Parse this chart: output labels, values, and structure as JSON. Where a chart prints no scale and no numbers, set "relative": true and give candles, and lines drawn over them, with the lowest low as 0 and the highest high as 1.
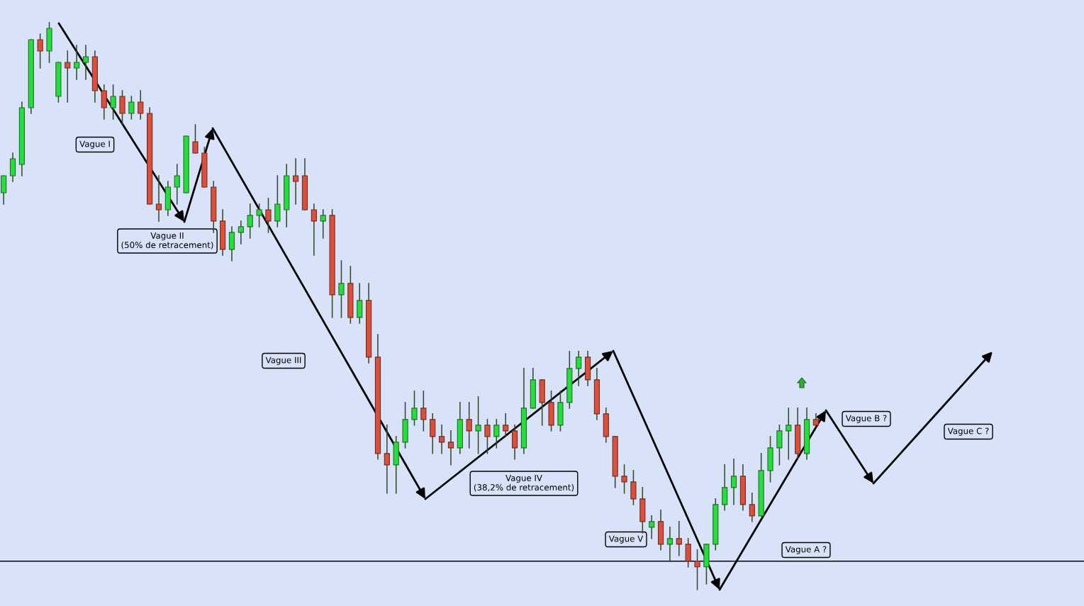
{
  "chart_data": {
    "type": "candlestick",
    "relative": true,
    "categories": [
      null,
      null,
      null,
      null,
      null,
      null,
      null,
      null,
      null,
      null,
      null,
      null,
      null,
      null,
      null,
      null,
      null,
      null,
      null,
      null,
      null,
      null,
      null,
      null,
      null,
      null,
      null,
      null,
      null,
      null,
      null,
      null,
      null,
      null,
      null,
      null,
      null,
      null,
      null,
      null,
      null,
      null,
      null,
      null,
      null,
      null,
      null,
      null,
      null,
      null,
      null,
      null,
      null,
      null,
      null,
      null,
      null,
      null,
      null,
      null,
      null,
      null,
      null,
      null,
      null,
      null,
      null,
      null,
      null,
      null,
      null,
      null,
      null,
      null,
      null,
      null,
      null,
      null,
      null,
      null,
      null,
      null,
      null,
      null,
      null,
      null,
      null,
      null,
      null,
      null
    ],
    "ohlc": [
      [
        0.7,
        0.73,
        0.68,
        0.73
      ],
      [
        0.73,
        0.77,
        0.72,
        0.76
      ],
      [
        0.75,
        0.86,
        0.73,
        0.85
      ],
      [
        0.85,
        0.97,
        0.84,
        0.97
      ],
      [
        0.97,
        0.98,
        0.92,
        0.95
      ],
      [
        0.95,
        1.0,
        0.93,
        0.99
      ],
      [
        0.87,
        0.93,
        0.86,
        0.93
      ],
      [
        0.93,
        0.95,
        0.86,
        0.92
      ],
      [
        0.92,
        0.96,
        0.9,
        0.93
      ],
      [
        0.93,
        0.96,
        0.9,
        0.94
      ],
      [
        0.94,
        0.95,
        0.86,
        0.88
      ],
      [
        0.88,
        0.89,
        0.83,
        0.85
      ],
      [
        0.85,
        0.89,
        0.83,
        0.87
      ],
      [
        0.87,
        0.88,
        0.82,
        0.84
      ],
      [
        0.84,
        0.87,
        0.83,
        0.86
      ],
      [
        0.86,
        0.88,
        0.83,
        0.84
      ],
      [
        0.84,
        0.85,
        0.68,
        0.68
      ],
      [
        0.68,
        0.73,
        0.65,
        0.67
      ],
      [
        0.67,
        0.72,
        0.66,
        0.71
      ],
      [
        0.71,
        0.75,
        0.68,
        0.73
      ],
      [
        0.7,
        0.8,
        0.7,
        0.8
      ],
      [
        0.79,
        0.82,
        0.77,
        0.77
      ],
      [
        0.77,
        0.78,
        0.71,
        0.71
      ],
      [
        0.71,
        0.72,
        0.63,
        0.65
      ],
      [
        0.65,
        0.67,
        0.59,
        0.6
      ],
      [
        0.6,
        0.64,
        0.58,
        0.63
      ],
      [
        0.63,
        0.65,
        0.61,
        0.64
      ],
      [
        0.64,
        0.68,
        0.62,
        0.66
      ],
      [
        0.66,
        0.68,
        0.64,
        0.67
      ],
      [
        0.67,
        0.69,
        0.63,
        0.65
      ],
      [
        0.65,
        0.73,
        0.64,
        0.68
      ],
      [
        0.67,
        0.75,
        0.64,
        0.73
      ],
      [
        0.73,
        0.76,
        0.68,
        0.72
      ],
      [
        0.73,
        0.76,
        0.67,
        0.67
      ],
      [
        0.67,
        0.68,
        0.59,
        0.65
      ],
      [
        0.65,
        0.67,
        0.62,
        0.66
      ],
      [
        0.66,
        0.67,
        0.48,
        0.52
      ],
      [
        0.52,
        0.58,
        0.48,
        0.54
      ],
      [
        0.54,
        0.57,
        0.47,
        0.48
      ],
      [
        0.48,
        0.54,
        0.47,
        0.51
      ],
      [
        0.51,
        0.54,
        0.4,
        0.41
      ],
      [
        0.41,
        0.45,
        0.23,
        0.24
      ],
      [
        0.24,
        0.29,
        0.17,
        0.22
      ],
      [
        0.22,
        0.27,
        0.17,
        0.26
      ],
      [
        0.26,
        0.33,
        0.25,
        0.3
      ],
      [
        0.3,
        0.35,
        0.29,
        0.32
      ],
      [
        0.32,
        0.35,
        0.28,
        0.3
      ],
      [
        0.3,
        0.31,
        0.24,
        0.27
      ],
      [
        0.27,
        0.29,
        0.24,
        0.26
      ],
      [
        0.26,
        0.28,
        0.22,
        0.25
      ],
      [
        0.25,
        0.33,
        0.24,
        0.3
      ],
      [
        0.3,
        0.33,
        0.25,
        0.28
      ],
      [
        0.28,
        0.34,
        0.24,
        0.29
      ],
      [
        0.29,
        0.3,
        0.24,
        0.27
      ],
      [
        0.27,
        0.3,
        0.25,
        0.29
      ],
      [
        0.29,
        0.31,
        0.27,
        0.28
      ],
      [
        0.28,
        0.29,
        0.23,
        0.25
      ],
      [
        0.25,
        0.39,
        0.24,
        0.32
      ],
      [
        0.32,
        0.39,
        0.32,
        0.37
      ],
      [
        0.37,
        0.37,
        0.29,
        0.33
      ],
      [
        0.33,
        0.35,
        0.28,
        0.29
      ],
      [
        0.29,
        0.35,
        0.28,
        0.33
      ],
      [
        0.33,
        0.42,
        0.32,
        0.39
      ],
      [
        0.39,
        0.42,
        0.36,
        0.41
      ],
      [
        0.41,
        0.42,
        0.36,
        0.37
      ],
      [
        0.37,
        0.39,
        0.3,
        0.31
      ],
      [
        0.31,
        0.32,
        0.26,
        0.27
      ],
      [
        0.27,
        0.27,
        0.18,
        0.2
      ],
      [
        0.2,
        0.22,
        0.17,
        0.19
      ],
      [
        0.19,
        0.21,
        0.15,
        0.16
      ],
      [
        0.16,
        0.18,
        0.1,
        0.12
      ],
      [
        0.11,
        0.13,
        0.09,
        0.12
      ],
      [
        0.12,
        0.14,
        0.07,
        0.08
      ],
      [
        0.08,
        0.11,
        0.05,
        0.09
      ],
      [
        0.09,
        0.12,
        0.06,
        0.08
      ],
      [
        0.08,
        0.09,
        0.04,
        0.05
      ],
      [
        0.05,
        0.07,
        0.0,
        0.04
      ],
      [
        0.04,
        0.08,
        0.01,
        0.08
      ],
      [
        0.08,
        0.16,
        0.07,
        0.15
      ],
      [
        0.15,
        0.22,
        0.14,
        0.18
      ],
      [
        0.18,
        0.23,
        0.15,
        0.2
      ],
      [
        0.2,
        0.22,
        0.14,
        0.15
      ],
      [
        0.15,
        0.17,
        0.12,
        0.13
      ],
      [
        0.13,
        0.24,
        0.13,
        0.21
      ],
      [
        0.21,
        0.27,
        0.19,
        0.25
      ],
      [
        0.25,
        0.29,
        0.22,
        0.28
      ],
      [
        0.28,
        0.32,
        0.23,
        0.29
      ],
      [
        0.29,
        0.32,
        0.23,
        0.24
      ],
      [
        0.24,
        0.32,
        0.23,
        0.3
      ],
      [
        0.3,
        0.31,
        0.29,
        0.29
      ]
    ],
    "ref_lines": [
      {
        "axis": "y",
        "value": 0.05,
        "color": "#000000"
      }
    ],
    "annotations": [
      "Vague I",
      "Vague II\n(50% de retracement)",
      "Vague III",
      "Vague IV\n(38,2% de retracement)",
      "Vague V",
      "Vague A ?",
      "Vague B ?",
      "Vague C ?"
    ]
  }
}
